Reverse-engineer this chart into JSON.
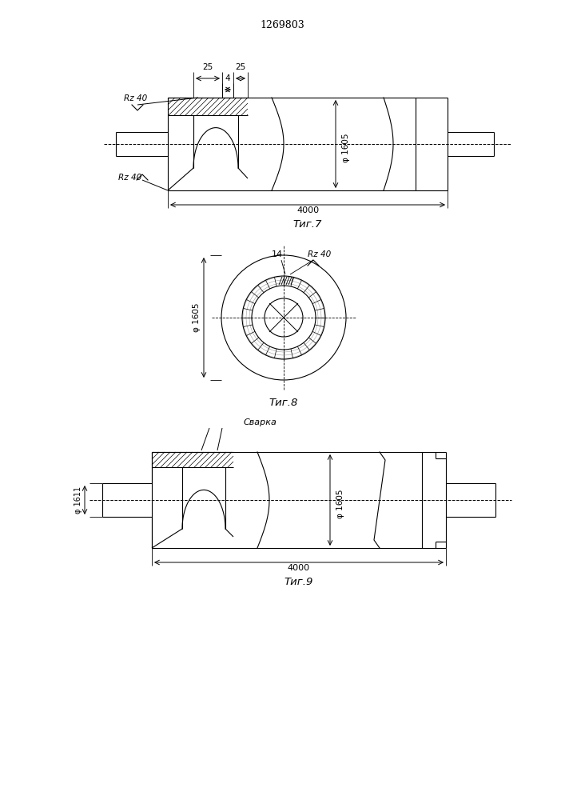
{
  "title": "1269803",
  "fig7_label": "Τиг.7",
  "fig8_label": "Τиг.8",
  "fig9_label": "Τиг.9",
  "dim_4": "4",
  "dim_25a": "25",
  "dim_25b": "25",
  "dim_Rz40_top": "Rz 40",
  "dim_Rz40_bottom": "Rz 40",
  "dim_phi1605_fig7": "φ 1605",
  "dim_4000_fig7": "4000",
  "dim_14": "14",
  "dim_Rz40_fig8": "Rz 40",
  "dim_phi1605_fig8": "φ 1605",
  "dim_svar": "Сварка",
  "dim_phi1611": "φ 1611",
  "dim_phi1605_fig9": "φ 1605",
  "dim_4000_fig9": "4000",
  "line_color": "#000000",
  "bg_color": "#ffffff"
}
